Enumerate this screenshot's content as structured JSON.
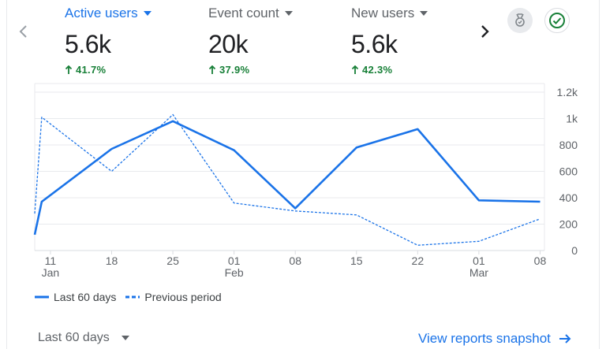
{
  "metrics": [
    {
      "label": "Active users",
      "value": "5.6k",
      "change": "41.7%"
    },
    {
      "label": "Event count",
      "value": "20k",
      "change": "37.9%"
    },
    {
      "label": "New users",
      "value": "5.6k",
      "change": "42.3%"
    }
  ],
  "legend": {
    "current": "Last 60 days",
    "previous": "Previous period"
  },
  "footer": {
    "date_range": "Last 60 days",
    "link": "View reports snapshot"
  },
  "icons": {
    "prev": "chevron-left-icon",
    "next": "chevron-right-icon",
    "dropdown": "caret-down-icon",
    "trend": "arrow-up-icon",
    "insights": "insights-icon",
    "check": "check-circle-icon",
    "link_arrow": "arrow-right-icon"
  },
  "colors": {
    "accent": "#1a73e8",
    "positive": "#188038",
    "text": "#202124",
    "muted": "#5f6368"
  },
  "chart_data": {
    "type": "line",
    "yticks": [
      "0",
      "200",
      "400",
      "600",
      "800",
      "1k",
      "1.2k"
    ],
    "ytick_values": [
      0,
      200,
      400,
      600,
      800,
      1000,
      1200
    ],
    "ylim": [
      0,
      1200
    ],
    "xticks": [
      {
        "day": "11",
        "month": "Jan",
        "x": 11
      },
      {
        "day": "18",
        "month": "",
        "x": 18
      },
      {
        "day": "25",
        "month": "",
        "x": 25
      },
      {
        "day": "01",
        "month": "Feb",
        "x": 32
      },
      {
        "day": "08",
        "month": "",
        "x": 39
      },
      {
        "day": "15",
        "month": "",
        "x": 46
      },
      {
        "day": "22",
        "month": "",
        "x": 53
      },
      {
        "day": "01",
        "month": "Mar",
        "x": 60
      },
      {
        "day": "08",
        "month": "",
        "x": 67
      }
    ],
    "xlim": [
      9.2,
      67.5
    ],
    "series": [
      {
        "name": "Last 60 days",
        "style": "solid",
        "points": [
          [
            9.2,
            120
          ],
          [
            10,
            370
          ],
          [
            18,
            770
          ],
          [
            25,
            980
          ],
          [
            32,
            760
          ],
          [
            39,
            320
          ],
          [
            46,
            780
          ],
          [
            53,
            920
          ],
          [
            60,
            380
          ],
          [
            67,
            370
          ]
        ]
      },
      {
        "name": "Previous period",
        "style": "dashed",
        "points": [
          [
            9.2,
            280
          ],
          [
            10,
            1010
          ],
          [
            18,
            600
          ],
          [
            25,
            1030
          ],
          [
            32,
            360
          ],
          [
            39,
            300
          ],
          [
            46,
            270
          ],
          [
            53,
            40
          ],
          [
            60,
            70
          ],
          [
            67,
            240
          ]
        ]
      }
    ]
  }
}
